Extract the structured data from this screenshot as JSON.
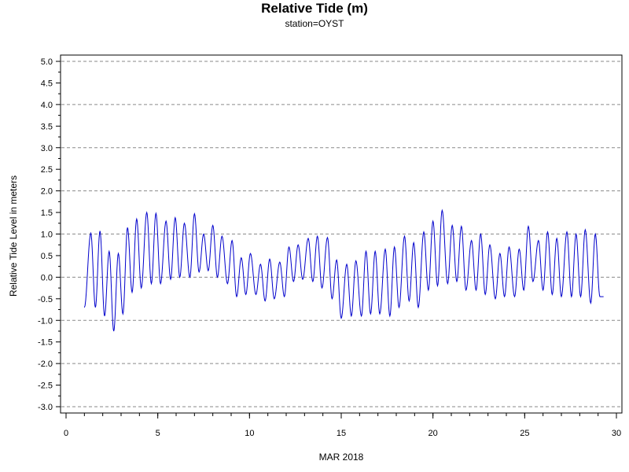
{
  "chart_data": {
    "type": "line",
    "title": "Relative Tide (m)",
    "subtitle": "station=OYST",
    "xlabel": "MAR 2018",
    "ylabel": "Relative Tide Level in meters",
    "xlim": [
      0,
      30
    ],
    "ylim": [
      -3.0,
      5.0
    ],
    "x_ticks": [
      0,
      5,
      10,
      15,
      20,
      25,
      30
    ],
    "x_tick_labels": [
      "0",
      "5",
      "10",
      "15",
      "20",
      "25",
      "30"
    ],
    "y_ticks": [
      5.0,
      4.5,
      4.0,
      3.5,
      3.0,
      2.5,
      2.0,
      1.5,
      1.0,
      0.5,
      0.0,
      -0.5,
      -1.0,
      -1.5,
      -2.0,
      -2.5,
      -3.0
    ],
    "y_tick_labels": [
      "5.0",
      "4.5",
      "4.0",
      "3.5",
      "3.0",
      "2.5",
      "2.0",
      "1.5",
      "1.0",
      "0.5",
      "0.0",
      "-0.5",
      "-1.0",
      "-1.5",
      "-2.0",
      "-2.5",
      "-3.0"
    ],
    "grid": "horizontal dashed at whole meters",
    "line_color": "#0000cc",
    "series": [
      {
        "values": [
          [
            1.0,
            -0.7
          ],
          [
            1.35,
            1.02
          ],
          [
            1.6,
            -0.7
          ],
          [
            1.85,
            1.07
          ],
          [
            2.1,
            -0.9
          ],
          [
            2.35,
            0.6
          ],
          [
            2.6,
            -1.25
          ],
          [
            2.85,
            0.55
          ],
          [
            3.1,
            -0.85
          ],
          [
            3.35,
            1.15
          ],
          [
            3.6,
            -0.35
          ],
          [
            3.85,
            1.35
          ],
          [
            4.1,
            -0.25
          ],
          [
            4.4,
            1.5
          ],
          [
            4.65,
            -0.15
          ],
          [
            4.9,
            1.48
          ],
          [
            5.15,
            -0.15
          ],
          [
            5.45,
            1.3
          ],
          [
            5.7,
            -0.05
          ],
          [
            5.95,
            1.38
          ],
          [
            6.2,
            0.0
          ],
          [
            6.45,
            1.25
          ],
          [
            6.75,
            0.0
          ],
          [
            7.0,
            1.47
          ],
          [
            7.25,
            0.12
          ],
          [
            7.5,
            1.0
          ],
          [
            7.75,
            0.15
          ],
          [
            8.0,
            1.2
          ],
          [
            8.25,
            0.0
          ],
          [
            8.5,
            0.95
          ],
          [
            8.8,
            -0.15
          ],
          [
            9.05,
            0.85
          ],
          [
            9.3,
            -0.45
          ],
          [
            9.55,
            0.45
          ],
          [
            9.8,
            -0.4
          ],
          [
            10.05,
            0.55
          ],
          [
            10.35,
            -0.4
          ],
          [
            10.6,
            0.3
          ],
          [
            10.85,
            -0.55
          ],
          [
            11.1,
            0.42
          ],
          [
            11.35,
            -0.5
          ],
          [
            11.65,
            0.35
          ],
          [
            11.9,
            -0.45
          ],
          [
            12.15,
            0.7
          ],
          [
            12.4,
            -0.1
          ],
          [
            12.65,
            0.75
          ],
          [
            12.9,
            -0.05
          ],
          [
            13.2,
            0.9
          ],
          [
            13.45,
            -0.1
          ],
          [
            13.7,
            0.95
          ],
          [
            13.95,
            -0.25
          ],
          [
            14.25,
            0.92
          ],
          [
            14.5,
            -0.5
          ],
          [
            14.75,
            0.4
          ],
          [
            15.0,
            -0.95
          ],
          [
            15.3,
            0.3
          ],
          [
            15.55,
            -0.9
          ],
          [
            15.8,
            0.38
          ],
          [
            16.1,
            -0.9
          ],
          [
            16.35,
            0.6
          ],
          [
            16.6,
            -0.85
          ],
          [
            16.85,
            0.6
          ],
          [
            17.1,
            -0.85
          ],
          [
            17.4,
            0.65
          ],
          [
            17.65,
            -0.9
          ],
          [
            17.9,
            0.7
          ],
          [
            18.15,
            -0.7
          ],
          [
            18.45,
            0.95
          ],
          [
            18.7,
            -0.55
          ],
          [
            18.95,
            0.8
          ],
          [
            19.2,
            -0.7
          ],
          [
            19.5,
            1.05
          ],
          [
            19.75,
            -0.3
          ],
          [
            20.0,
            1.3
          ],
          [
            20.25,
            -0.2
          ],
          [
            20.5,
            1.55
          ],
          [
            20.8,
            -0.15
          ],
          [
            21.05,
            1.2
          ],
          [
            21.3,
            -0.1
          ],
          [
            21.55,
            1.18
          ],
          [
            21.8,
            -0.3
          ],
          [
            22.1,
            0.85
          ],
          [
            22.35,
            -0.3
          ],
          [
            22.6,
            1.0
          ],
          [
            22.85,
            -0.4
          ],
          [
            23.1,
            0.75
          ],
          [
            23.4,
            -0.5
          ],
          [
            23.65,
            0.55
          ],
          [
            23.9,
            -0.45
          ],
          [
            24.15,
            0.7
          ],
          [
            24.45,
            -0.45
          ],
          [
            24.7,
            0.65
          ],
          [
            24.95,
            -0.3
          ],
          [
            25.2,
            1.18
          ],
          [
            25.45,
            -0.1
          ],
          [
            25.75,
            0.85
          ],
          [
            26.0,
            -0.3
          ],
          [
            26.25,
            1.05
          ],
          [
            26.5,
            -0.4
          ],
          [
            26.75,
            0.9
          ],
          [
            27.0,
            -0.45
          ],
          [
            27.3,
            1.05
          ],
          [
            27.55,
            -0.45
          ],
          [
            27.8,
            1.0
          ],
          [
            28.05,
            -0.45
          ],
          [
            28.3,
            1.1
          ],
          [
            28.6,
            -0.6
          ],
          [
            28.85,
            1.0
          ],
          [
            29.1,
            -0.45
          ],
          [
            29.3,
            -0.45
          ]
        ]
      }
    ]
  }
}
